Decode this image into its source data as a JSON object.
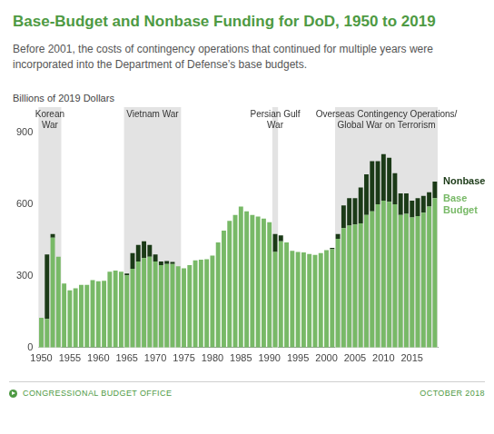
{
  "chart_data": {
    "type": "bar",
    "title": "Base-Budget and Nonbase Funding for DoD, 1950 to 2019",
    "subtitle": "Before 2001, the costs of contingency operations that continued for multiple years were incorporated into the Department of Defense’s base budgets.",
    "y_label": "Billions of 2019 Dollars",
    "x": [
      1950,
      1951,
      1952,
      1953,
      1954,
      1955,
      1956,
      1957,
      1958,
      1959,
      1960,
      1961,
      1962,
      1963,
      1964,
      1965,
      1966,
      1967,
      1968,
      1969,
      1970,
      1971,
      1972,
      1973,
      1974,
      1975,
      1976,
      1977,
      1978,
      1979,
      1980,
      1981,
      1982,
      1983,
      1984,
      1985,
      1986,
      1987,
      1988,
      1989,
      1990,
      1991,
      1992,
      1993,
      1994,
      1995,
      1996,
      1997,
      1998,
      1999,
      2000,
      2001,
      2002,
      2003,
      2004,
      2005,
      2006,
      2007,
      2008,
      2009,
      2010,
      2011,
      2012,
      2013,
      2014,
      2015,
      2016,
      2017,
      2018,
      2019
    ],
    "xlim": [
      1949.5,
      2019.5
    ],
    "xticks": [
      1950,
      1955,
      1960,
      1965,
      1970,
      1975,
      1980,
      1985,
      1990,
      1995,
      2000,
      2005,
      2010,
      2015
    ],
    "ylim": [
      0,
      900
    ],
    "yticks": [
      0,
      300,
      600,
      900
    ],
    "stacked": true,
    "grid": false,
    "legend": "right",
    "series": [
      {
        "name": "Base Budget",
        "color": "#78b967",
        "values": [
          125,
          120,
          460,
          380,
          268,
          240,
          248,
          262,
          262,
          282,
          278,
          280,
          318,
          322,
          318,
          302,
          330,
          360,
          375,
          380,
          360,
          345,
          350,
          350,
          340,
          332,
          345,
          365,
          368,
          370,
          385,
          440,
          490,
          530,
          555,
          590,
          570,
          555,
          548,
          540,
          525,
          400,
          445,
          440,
          405,
          400,
          398,
          392,
          388,
          395,
          408,
          412,
          455,
          500,
          510,
          515,
          520,
          555,
          570,
          600,
          615,
          610,
          600,
          555,
          560,
          545,
          550,
          565,
          590,
          625
        ]
      },
      {
        "name": "Nonbase",
        "color": "#1b3a17",
        "values": [
          0,
          270,
          15,
          0,
          0,
          0,
          0,
          0,
          0,
          0,
          0,
          0,
          0,
          0,
          0,
          8,
          65,
          70,
          70,
          50,
          30,
          15,
          12,
          8,
          0,
          0,
          0,
          0,
          0,
          0,
          0,
          0,
          0,
          0,
          0,
          0,
          0,
          0,
          0,
          0,
          0,
          75,
          25,
          0,
          0,
          0,
          0,
          0,
          0,
          0,
          0,
          5,
          20,
          95,
          115,
          110,
          150,
          170,
          210,
          180,
          195,
          185,
          130,
          90,
          85,
          70,
          75,
          70,
          60,
          70
        ]
      }
    ],
    "periods": [
      {
        "label": [
          "Korean",
          "War"
        ],
        "start": 1950,
        "end": 1953
      },
      {
        "label": [
          "Vietnam War"
        ],
        "start": 1965,
        "end": 1974
      },
      {
        "label": [
          "Persian Gulf",
          "War"
        ],
        "start": 1991,
        "end": 1991
      },
      {
        "label": [
          "Overseas Contingency Operations/",
          "Global War on Terrorism"
        ],
        "start": 2002,
        "end": 2019
      }
    ],
    "source": "CONGRESSIONAL BUDGET OFFICE",
    "date": "OCTOBER 2018"
  }
}
